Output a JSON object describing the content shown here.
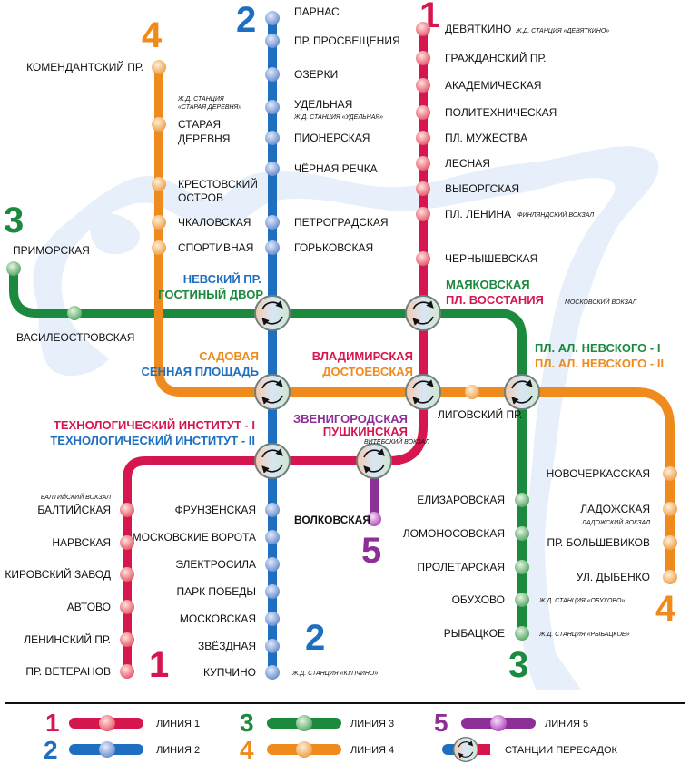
{
  "colors": {
    "line1": "#d6174f",
    "line2": "#1f6fc0",
    "line3": "#1c8a3e",
    "line4": "#ef8a1c",
    "line5": "#8c2f96",
    "river": "#e6effa"
  },
  "line_numbers": {
    "line1_top": "1",
    "line1_bottom": "1",
    "line2_top": "2",
    "line2_bottom": "2",
    "line3_top": "3",
    "line3_bottom": "3",
    "line4_top": "4",
    "line4_bottom": "4",
    "line5": "5"
  },
  "stations": {
    "parnas": "ПАРНАС",
    "pr_prosvescheniya": "ПР. ПРОСВЕЩЕНИЯ",
    "ozerki": "ОЗЕРКИ",
    "udelnaya": "УДЕЛЬНАЯ",
    "pionerskaya": "ПИОНЕРСКАЯ",
    "chernaya_rechka": "ЧЁРНАЯ РЕЧКА",
    "petrogradskaya": "ПЕТРОГРАДСКАЯ",
    "gorkovskaya": "ГОРЬКОВСКАЯ",
    "frunzenskaya": "ФРУНЗЕНСКАЯ",
    "moskovskie_vorota": "МОСКОВСКИЕ ВОРОТА",
    "elektrosila": "ЭЛЕКТРОСИЛА",
    "park_pobedy": "ПАРК ПОБЕДЫ",
    "moskovskaya": "МОСКОВСКАЯ",
    "zvezdnaya": "ЗВЁЗДНАЯ",
    "kupchino": "КУПЧИНО",
    "devyatkino": "ДЕВЯТКИНО",
    "grazhdansky": "ГРАЖДАНСКИЙ ПР.",
    "akademicheskaya": "АКАДЕМИЧЕСКАЯ",
    "politekhnicheskaya": "ПОЛИТЕХНИЧЕСКАЯ",
    "pl_muzhestva": "ПЛ. МУЖЕСТВА",
    "lesnaya": "ЛЕСНАЯ",
    "vyborgskaya": "ВЫБОРГСКАЯ",
    "pl_lenina": "ПЛ. ЛЕНИНА",
    "chernyshevskaya": "ЧЕРНЫШЕВСКАЯ",
    "baltiyskaya": "БАЛТИЙСКАЯ",
    "narvskaya": "НАРВСКАЯ",
    "kirovsky_zavod": "КИРОВСКИЙ ЗАВОД",
    "avtovo": "АВТОВО",
    "leninsky_pr": "ЛЕНИНСКИЙ ПР.",
    "pr_veteranov": "ПР. ВЕТЕРАНОВ",
    "komendantsky": "КОМЕНДАНТСКИЙ ПР.",
    "staraya_derevnya_1": "СТАРАЯ",
    "staraya_derevnya_2": "ДЕРЕВНЯ",
    "krestovsky_1": "КРЕСТОВСКИЙ",
    "krestovsky_2": "ОСТРОВ",
    "chkalovskaya": "ЧКАЛОВСКАЯ",
    "sportivnaya": "СПОРТИВНАЯ",
    "ligovsky": "ЛИГОВСКИЙ ПР.",
    "novocherkasskaya": "НОВОЧЕРКАССКАЯ",
    "ladozhskaya": "ЛАДОЖСКАЯ",
    "pr_bolshevikov": "ПР. БОЛЬШЕВИКОВ",
    "ul_dybenko": "УЛ. ДЫБЕНКО",
    "primorskaya": "ПРИМОРСКАЯ",
    "vasileostrovskaya": "ВАСИЛЕОСТРОВСКАЯ",
    "elizarovskaya": "ЕЛИЗАРОВСКАЯ",
    "lomonosovskaya": "ЛОМОНОСОВСКАЯ",
    "proletarskaya": "ПРОЛЕТАРСКАЯ",
    "obukhovo": "ОБУХОВО",
    "rybatskoe": "РЫБАЦКОЕ",
    "volkovskaya": "ВОЛКОВСКАЯ"
  },
  "interchanges": {
    "nevsky": "НЕВСКИЙ ПР.",
    "gostiny": "ГОСТИНЫЙ ДВОР",
    "mayakovskaya": "МАЯКОВСКАЯ",
    "vosstaniya": "ПЛ. ВОССТАНИЯ",
    "sadovaya": "САДОВАЯ",
    "sennaya": "СЕННАЯ ПЛОЩАДЬ",
    "vladimirskaya": "ВЛАДИМИРСКАЯ",
    "dostoevskaya": "ДОСТОЕВСКАЯ",
    "nevskogo_1": "ПЛ. АЛ. НЕВСКОГО - I",
    "nevskogo_2": "ПЛ. АЛ. НЕВСКОГО - II",
    "tekhnolog_1": "ТЕХНОЛОГИЧЕСКИЙ ИНСТИТУТ - I",
    "tekhnolog_2": "ТЕХНОЛОГИЧЕСКИЙ ИНСТИТУТ - II",
    "zvenigorodskaya": "ЗВЕНИГОРОДСКАЯ",
    "pushkinskaya": "ПУШКИНСКАЯ"
  },
  "notes": {
    "devyatkino_rail": "Ж.Д. СТАНЦИЯ «ДЕВЯТКИНО»",
    "staraya_rail_1": "Ж.Д. СТАНЦИЯ",
    "staraya_rail_2": "«СТАРАЯ ДЕРЕВНЯ»",
    "udelnaya_rail": "Ж.Д. СТАНЦИЯ «УДЕЛЬНАЯ»",
    "finlyandsky": "ФИНЛЯНДСКИЙ ВОКЗАЛ",
    "moskovsky": "МОСКОВСКИЙ ВОКЗАЛ",
    "vitebsky": "ВИТЕБСКИЙ ВОКЗАЛ",
    "baltiysky": "БАЛТИЙСКИЙ ВОКЗАЛ",
    "ladozhsky": "ЛАДОЖСКИЙ ВОКЗАЛ",
    "obukhovo_rail": "Ж.Д. СТАНЦИЯ «ОБУХОВО»",
    "rybatskoe_rail": "Ж.Д. СТАНЦИЯ «РЫБАЦКОЕ»",
    "kupchino_rail": "Ж.Д. СТАНЦИЯ «КУПЧИНО»"
  },
  "legend": {
    "line1": "ЛИНИЯ 1",
    "line2": "ЛИНИЯ 2",
    "line3": "ЛИНИЯ 3",
    "line4": "ЛИНИЯ 4",
    "line5": "ЛИНИЯ 5",
    "transfer": "СТАНЦИИ ПЕРЕСАДОК",
    "num1": "1",
    "num2": "2",
    "num3": "3",
    "num4": "4",
    "num5": "5"
  }
}
